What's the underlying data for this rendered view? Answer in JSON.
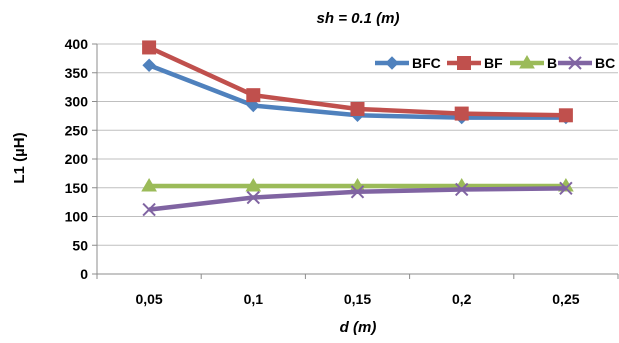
{
  "chart_data": {
    "type": "line",
    "title": "sh = 0.1 (m)",
    "xlabel": "d (m)",
    "ylabel": "L1 (µH)",
    "categories": [
      "0,05",
      "0,1",
      "0,15",
      "0,2",
      "0,25"
    ],
    "ylim": [
      0,
      400
    ],
    "yticks": [
      0,
      50,
      100,
      150,
      200,
      250,
      300,
      350,
      400
    ],
    "grid": true,
    "legend_position": "top-right",
    "series": [
      {
        "name": "BFC",
        "values": [
          363,
          293,
          276,
          272,
          272
        ],
        "color": "#4f81bd",
        "marker": "diamond"
      },
      {
        "name": "BF",
        "values": [
          394,
          311,
          287,
          279,
          276
        ],
        "color": "#c0504d",
        "marker": "square"
      },
      {
        "name": "B",
        "values": [
          153,
          153,
          153,
          153,
          153
        ],
        "color": "#9bbb59",
        "marker": "triangle"
      },
      {
        "name": "BC",
        "values": [
          112,
          133,
          143,
          147,
          149
        ],
        "color": "#8064a2",
        "marker": "x"
      }
    ]
  }
}
